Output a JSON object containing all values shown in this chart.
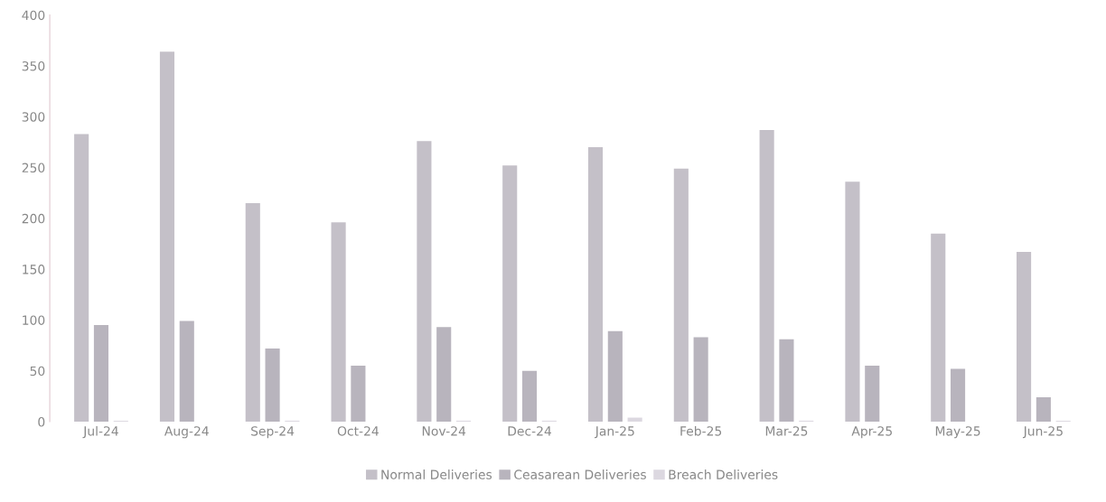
{
  "chart_data": {
    "type": "bar",
    "categories": [
      "Jul-24",
      "Aug-24",
      "Sep-24",
      "Oct-24",
      "Nov-24",
      "Dec-24",
      "Jan-25",
      "Feb-25",
      "Mar-25",
      "Apr-25",
      "May-25",
      "Jun-25"
    ],
    "series": [
      {
        "name": "Normal Deliveries",
        "color": "#c4c0c8",
        "values": [
          283,
          364,
          215,
          196,
          276,
          252,
          270,
          249,
          287,
          236,
          185,
          167
        ]
      },
      {
        "name": "Ceasarean Deliveries",
        "color": "#b8b4bd",
        "values": [
          95,
          99,
          72,
          55,
          93,
          50,
          89,
          83,
          81,
          55,
          52,
          24
        ]
      },
      {
        "name": "Breach Deliveries",
        "color": "#dcd8e0",
        "values": [
          1,
          0,
          1,
          0,
          1,
          1,
          4,
          0,
          1,
          0,
          0,
          1
        ]
      }
    ],
    "ylim": [
      0,
      400
    ],
    "yticks": [
      0,
      50,
      100,
      150,
      200,
      250,
      300,
      350,
      400
    ],
    "grid": false,
    "legend": "bottom"
  }
}
